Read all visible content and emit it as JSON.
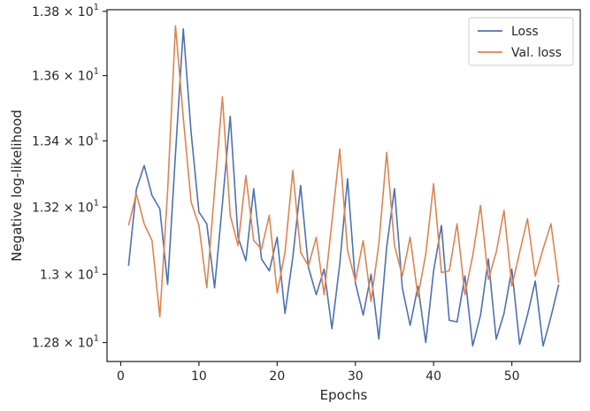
{
  "chart_data": {
    "type": "line",
    "xlabel": "Epochs",
    "ylabel": "Negative log-likelihood",
    "xlim": [
      -1.75,
      58.75
    ],
    "ylim": [
      12.745,
      13.805
    ],
    "y_scale": "log",
    "x_ticks": [
      0,
      10,
      20,
      30,
      40,
      50
    ],
    "x_tick_labels": [
      "0",
      "10",
      "20",
      "30",
      "40",
      "50"
    ],
    "y_ticks": [
      12.8,
      13.0,
      13.2,
      13.4,
      13.6,
      13.8
    ],
    "y_tick_labels": [
      {
        "mantissa": "1.28",
        "exp": "1"
      },
      {
        "mantissa": "1.3",
        "exp": "1"
      },
      {
        "mantissa": "1.32",
        "exp": "1"
      },
      {
        "mantissa": "1.34",
        "exp": "1"
      },
      {
        "mantissa": "1.36",
        "exp": "1"
      },
      {
        "mantissa": "1.38",
        "exp": "1"
      }
    ],
    "grid": false,
    "legend_position": "top-right",
    "x": [
      1,
      2,
      3,
      4,
      5,
      6,
      7,
      8,
      9,
      10,
      11,
      12,
      13,
      14,
      15,
      16,
      17,
      18,
      19,
      20,
      21,
      22,
      23,
      24,
      25,
      26,
      27,
      28,
      29,
      30,
      31,
      32,
      33,
      34,
      35,
      36,
      37,
      38,
      39,
      40,
      41,
      42,
      43,
      44,
      45,
      46,
      47,
      48,
      49,
      50,
      51,
      52,
      53,
      54,
      55,
      56
    ],
    "series": [
      {
        "name": "Loss",
        "color": "#4c72b0",
        "values": [
          13.025,
          13.253,
          13.325,
          13.235,
          13.195,
          12.97,
          13.36,
          13.745,
          13.425,
          13.185,
          13.15,
          12.96,
          13.21,
          13.475,
          13.11,
          13.04,
          13.255,
          13.045,
          13.01,
          13.11,
          12.885,
          13.05,
          13.265,
          13.02,
          12.94,
          13.015,
          12.84,
          13.03,
          13.285,
          12.975,
          12.88,
          13.0,
          12.81,
          13.08,
          13.255,
          12.96,
          12.85,
          12.965,
          12.8,
          13.01,
          13.145,
          12.865,
          12.86,
          12.995,
          12.79,
          12.88,
          13.045,
          12.81,
          12.885,
          13.015,
          12.795,
          12.88,
          12.98,
          12.79,
          12.875,
          12.97
        ]
      },
      {
        "name": "Val. loss",
        "color": "#dd8452",
        "values": [
          13.145,
          13.24,
          13.15,
          13.1,
          12.875,
          13.25,
          13.755,
          13.47,
          13.215,
          13.145,
          12.96,
          13.25,
          13.535,
          13.175,
          13.085,
          13.295,
          13.1,
          13.075,
          13.175,
          12.945,
          13.065,
          13.31,
          13.065,
          13.025,
          13.11,
          12.94,
          13.155,
          13.375,
          13.07,
          12.98,
          13.1,
          12.92,
          13.09,
          13.365,
          13.085,
          12.995,
          13.11,
          12.935,
          13.06,
          13.27,
          13.005,
          13.01,
          13.15,
          12.94,
          13.055,
          13.205,
          12.985,
          13.065,
          13.19,
          12.965,
          13.065,
          13.165,
          12.995,
          13.075,
          13.15,
          12.975
        ]
      }
    ]
  }
}
